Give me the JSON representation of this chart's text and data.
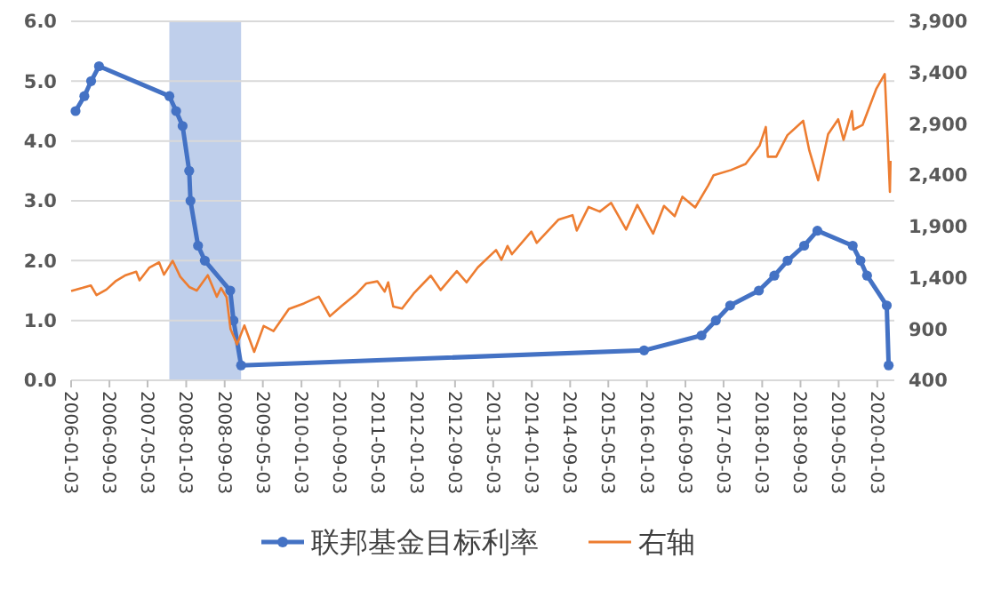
{
  "chart_data": {
    "type": "line",
    "xlim": [
      "2006-01-03",
      "2020-04-20"
    ],
    "xticks": [
      "2006-01-03",
      "2006-09-03",
      "2007-05-03",
      "2008-01-03",
      "2008-09-03",
      "2009-05-03",
      "2010-01-03",
      "2010-09-03",
      "2011-05-03",
      "2012-01-03",
      "2012-09-03",
      "2013-05-03",
      "2014-01-03",
      "2014-09-03",
      "2015-05-03",
      "2016-01-03",
      "2016-09-03",
      "2017-05-03",
      "2018-01-03",
      "2018-09-03",
      "2019-05-03",
      "2020-01-03"
    ],
    "ylim": [
      0,
      6
    ],
    "yticks": [
      {
        "value": 0,
        "label": "0.0"
      },
      {
        "value": 1,
        "label": "1.0"
      },
      {
        "value": 2,
        "label": "2.0"
      },
      {
        "value": 3,
        "label": "3.0"
      },
      {
        "value": 4,
        "label": "4.0"
      },
      {
        "value": 5,
        "label": "5.0"
      },
      {
        "value": 6,
        "label": "6.0"
      }
    ],
    "y2lim": [
      400,
      3900
    ],
    "y2ticks": [
      400,
      900,
      {
        "value": 1400,
        "label": "1,400"
      },
      {
        "value": 1900,
        "label": "1,900"
      },
      {
        "value": 2400,
        "label": "2,400"
      },
      {
        "value": 2900,
        "label": "2,900"
      },
      {
        "value": 3400,
        "label": "3,400"
      },
      {
        "value": 3900,
        "label": "3,900"
      }
    ],
    "grid": "y",
    "legend": "bottom",
    "bands": [
      {
        "axis": "x",
        "from": "2007-09-18",
        "to": "2008-12-16",
        "color": "#b4c7e7"
      }
    ],
    "series": [
      {
        "name": "联邦基金目标利率",
        "color": "#4472c4",
        "marker": "circle",
        "x": [
          "2006-01-31",
          "2006-03-28",
          "2006-05-10",
          "2006-06-29",
          "2007-09-18",
          "2007-10-31",
          "2007-12-11",
          "2008-01-22",
          "2008-01-30",
          "2008-03-18",
          "2008-04-30",
          "2008-10-08",
          "2008-10-29",
          "2008-12-16",
          "2015-12-16",
          "2016-12-14",
          "2017-03-15",
          "2017-06-14",
          "2017-12-13",
          "2018-03-21",
          "2018-06-13",
          "2018-09-26",
          "2018-12-19",
          "2019-07-31",
          "2019-09-18",
          "2019-10-30",
          "2020-03-03",
          "2020-03-15"
        ],
        "values": [
          4.5,
          4.75,
          5.0,
          5.25,
          4.75,
          4.5,
          4.25,
          3.5,
          3.0,
          2.25,
          2.0,
          1.5,
          1.0,
          0.25,
          0.5,
          0.75,
          1.0,
          1.25,
          1.5,
          1.75,
          2.0,
          2.25,
          2.5,
          2.25,
          2.0,
          1.75,
          1.25,
          0.25
        ]
      },
      {
        "name": "右轴",
        "color": "#ed7d31",
        "axis": "y2",
        "marker": "none",
        "x": [
          "2006-01-03",
          "2006-03-15",
          "2006-05-08",
          "2006-06-13",
          "2006-08-15",
          "2006-10-15",
          "2006-12-15",
          "2007-02-20",
          "2007-03-13",
          "2007-05-15",
          "2007-07-15",
          "2007-08-15",
          "2007-10-09",
          "2007-11-26",
          "2008-01-22",
          "2008-03-10",
          "2008-05-19",
          "2008-07-15",
          "2008-08-11",
          "2008-09-15",
          "2008-10-10",
          "2008-11-20",
          "2009-01-06",
          "2009-03-09",
          "2009-05-08",
          "2009-07-10",
          "2009-10-15",
          "2010-01-19",
          "2010-04-23",
          "2010-07-02",
          "2010-09-15",
          "2010-12-15",
          "2011-02-18",
          "2011-04-29",
          "2011-06-15",
          "2011-07-07",
          "2011-08-08",
          "2011-10-03",
          "2011-12-15",
          "2012-04-02",
          "2012-06-04",
          "2012-09-14",
          "2012-11-15",
          "2013-01-25",
          "2013-05-21",
          "2013-06-24",
          "2013-08-02",
          "2013-08-30",
          "2013-12-31",
          "2014-02-03",
          "2014-06-20",
          "2014-09-18",
          "2014-10-15",
          "2014-12-29",
          "2015-03-10",
          "2015-05-21",
          "2015-08-24",
          "2015-11-03",
          "2016-02-11",
          "2016-04-20",
          "2016-06-27",
          "2016-08-15",
          "2016-11-04",
          "2017-01-26",
          "2017-03-01",
          "2017-06-19",
          "2017-09-20",
          "2017-12-18",
          "2018-01-26",
          "2018-02-08",
          "2018-04-02",
          "2018-06-12",
          "2018-09-20",
          "2018-10-29",
          "2018-12-24",
          "2019-02-25",
          "2019-04-30",
          "2019-06-03",
          "2019-07-26",
          "2019-08-05",
          "2019-10-02",
          "2019-12-27",
          "2020-02-19",
          "2020-03-09",
          "2020-03-23",
          "2020-03-27"
        ],
        "values": [
          1270,
          1300,
          1325,
          1230,
          1285,
          1370,
          1425,
          1459,
          1375,
          1500,
          1550,
          1430,
          1565,
          1410,
          1310,
          1275,
          1425,
          1215,
          1300,
          1210,
          900,
          750,
          935,
          677,
          930,
          880,
          1095,
          1150,
          1215,
          1025,
          1125,
          1240,
          1345,
          1365,
          1265,
          1355,
          1120,
          1100,
          1245,
          1420,
          1280,
          1465,
          1355,
          1500,
          1670,
          1575,
          1710,
          1630,
          1850,
          1740,
          1965,
          2010,
          1860,
          2090,
          2045,
          2130,
          1870,
          2110,
          1830,
          2100,
          2000,
          2190,
          2085,
          2300,
          2400,
          2450,
          2510,
          2690,
          2870,
          2580,
          2580,
          2790,
          2930,
          2640,
          2350,
          2800,
          2945,
          2745,
          3025,
          2845,
          2890,
          3240,
          3386,
          2745,
          2237,
          2540
        ]
      }
    ]
  }
}
